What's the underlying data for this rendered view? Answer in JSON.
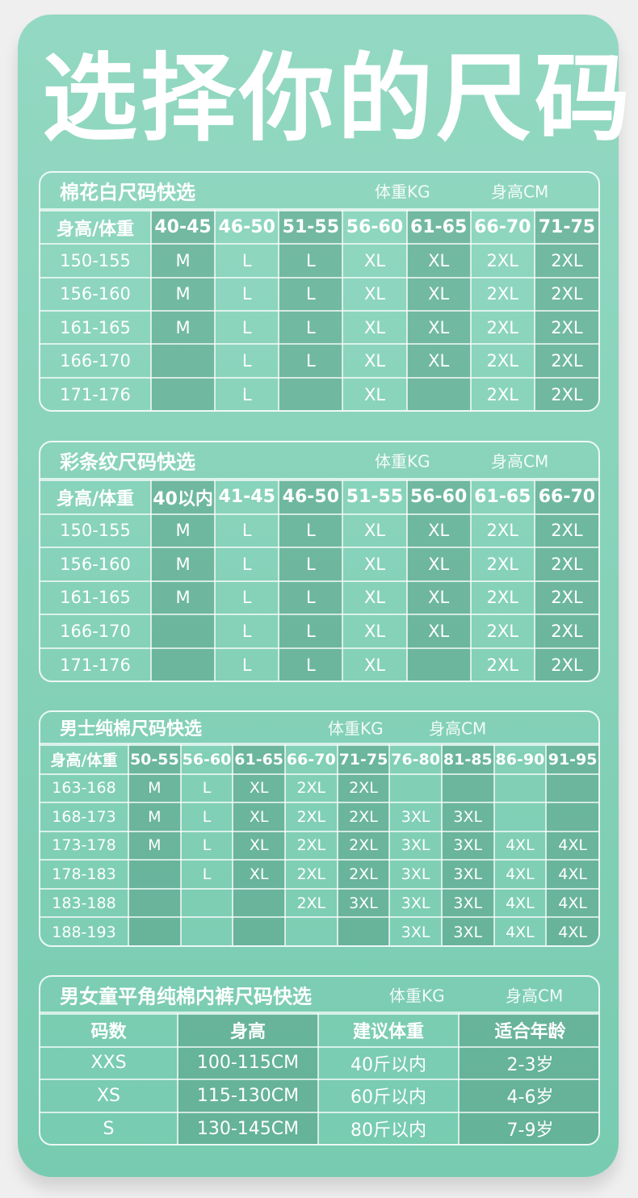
{
  "title": "选择你的尺码",
  "colors": {
    "background": "#efefef",
    "card_top": "#93d8c2",
    "card_bottom": "#77cbb0",
    "text": "#ffffff"
  },
  "tables": [
    {
      "title": "棉花白尺码快选",
      "weight_unit": "体重KG",
      "height_unit": "身高CM",
      "header": [
        "身高/体重",
        "40-45",
        "46-50",
        "51-55",
        "56-60",
        "61-65",
        "66-70",
        "71-75"
      ],
      "rows": [
        [
          "150-155",
          "M",
          "L",
          "L",
          "XL",
          "XL",
          "2XL",
          "2XL"
        ],
        [
          "156-160",
          "M",
          "L",
          "L",
          "XL",
          "XL",
          "2XL",
          "2XL"
        ],
        [
          "161-165",
          "M",
          "L",
          "L",
          "XL",
          "XL",
          "2XL",
          "2XL"
        ],
        [
          "166-170",
          "",
          "L",
          "L",
          "XL",
          "XL",
          "2XL",
          "2XL"
        ],
        [
          "171-176",
          "",
          "L",
          "",
          "XL",
          "",
          "2XL",
          "2XL"
        ]
      ]
    },
    {
      "title": "彩条纹尺码快选",
      "weight_unit": "体重KG",
      "height_unit": "身高CM",
      "header": [
        "身高/体重",
        "40以内",
        "41-45",
        "46-50",
        "51-55",
        "56-60",
        "61-65",
        "66-70"
      ],
      "rows": [
        [
          "150-155",
          "M",
          "L",
          "L",
          "XL",
          "XL",
          "2XL",
          "2XL"
        ],
        [
          "156-160",
          "M",
          "L",
          "L",
          "XL",
          "XL",
          "2XL",
          "2XL"
        ],
        [
          "161-165",
          "M",
          "L",
          "L",
          "XL",
          "XL",
          "2XL",
          "2XL"
        ],
        [
          "166-170",
          "",
          "L",
          "L",
          "XL",
          "XL",
          "2XL",
          "2XL"
        ],
        [
          "171-176",
          "",
          "L",
          "L",
          "XL",
          "",
          "2XL",
          "2XL"
        ]
      ]
    },
    {
      "title": "男士纯棉尺码快选",
      "weight_unit": "体重KG",
      "height_unit": "身高CM",
      "header": [
        "身高/体重",
        "50-55",
        "56-60",
        "61-65",
        "66-70",
        "71-75",
        "76-80",
        "81-85",
        "86-90",
        "91-95"
      ],
      "rows": [
        [
          "163-168",
          "M",
          "L",
          "XL",
          "2XL",
          "2XL",
          "",
          "",
          "",
          ""
        ],
        [
          "168-173",
          "M",
          "L",
          "XL",
          "2XL",
          "2XL",
          "3XL",
          "3XL",
          "",
          ""
        ],
        [
          "173-178",
          "M",
          "L",
          "XL",
          "2XL",
          "2XL",
          "3XL",
          "3XL",
          "4XL",
          "4XL"
        ],
        [
          "178-183",
          "",
          "L",
          "XL",
          "2XL",
          "2XL",
          "3XL",
          "3XL",
          "4XL",
          "4XL"
        ],
        [
          "183-188",
          "",
          "",
          "",
          "2XL",
          "3XL",
          "3XL",
          "3XL",
          "4XL",
          "4XL"
        ],
        [
          "188-193",
          "",
          "",
          "",
          "",
          "",
          "3XL",
          "3XL",
          "4XL",
          "4XL"
        ]
      ]
    },
    {
      "title": "男女童平角纯棉内裤尺码快选",
      "weight_unit": "体重KG",
      "height_unit": "身高CM",
      "header": [
        "码数",
        "身高",
        "建议体重",
        "适合年龄"
      ],
      "rows": [
        [
          "XXS",
          "100-115CM",
          "40斤以内",
          "2-3岁"
        ],
        [
          "XS",
          "115-130CM",
          "60斤以内",
          "4-6岁"
        ],
        [
          "S",
          "130-145CM",
          "80斤以内",
          "7-9岁"
        ]
      ]
    }
  ]
}
